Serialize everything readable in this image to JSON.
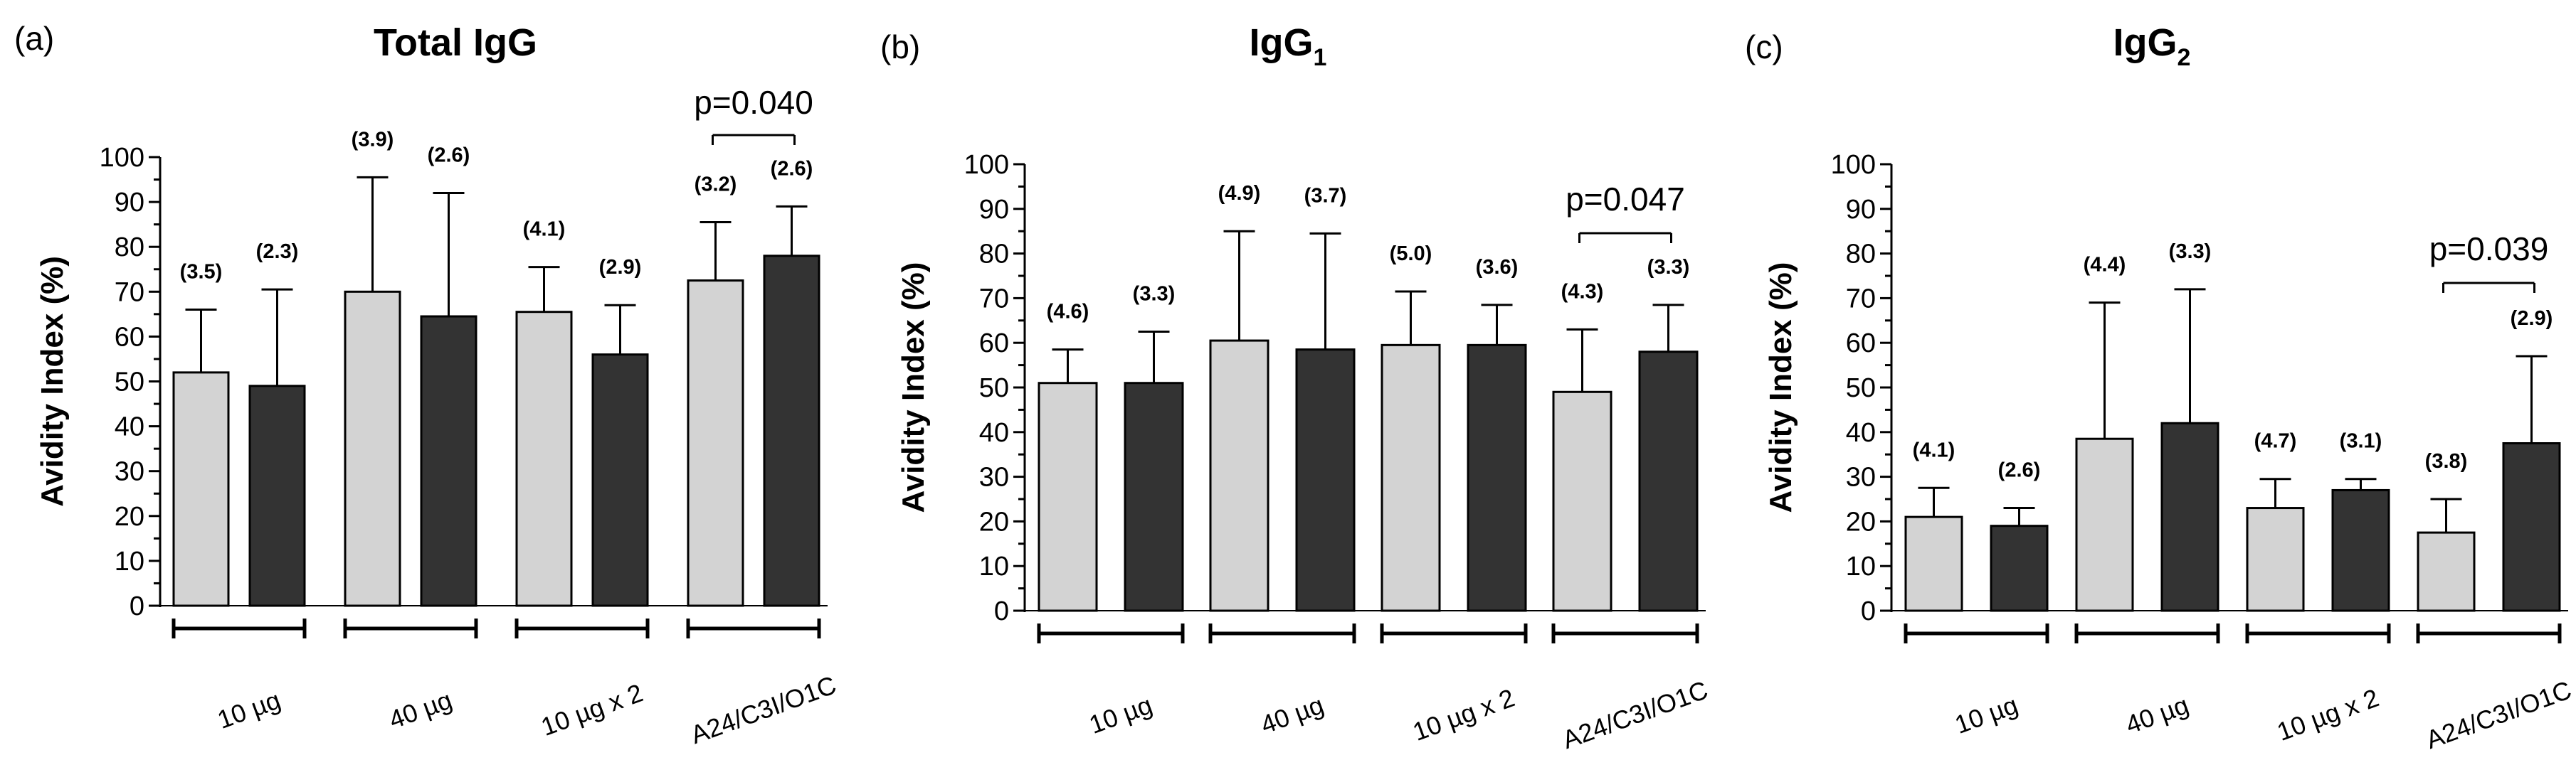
{
  "chart_data": [
    {
      "type": "bar",
      "panel_label": "(a)",
      "title": "Total IgG",
      "title_subscript": "",
      "ylabel": "Avidity Index (%)",
      "ylim": [
        0,
        100
      ],
      "yticks": [
        "0",
        "10",
        "20",
        "30",
        "40",
        "50",
        "60",
        "70",
        "80",
        "90",
        "100"
      ],
      "categories": [
        "10 µg",
        "40 µg",
        "10 µg x 2",
        "A24/C3I/O1C"
      ],
      "series": [
        {
          "color": "#d3d3d3",
          "values": [
            52,
            70,
            65.5,
            72.5
          ],
          "errors": [
            14,
            25.5,
            10,
            13
          ],
          "labels": [
            "(3.5)",
            "(3.9)",
            "(4.1)",
            "(3.2)"
          ]
        },
        {
          "color": "#333333",
          "values": [
            49,
            64.5,
            56,
            78
          ],
          "errors": [
            21.5,
            27.5,
            11,
            11
          ],
          "labels": [
            "(2.3)",
            "(2.6)",
            "(2.9)",
            "(2.6)"
          ]
        }
      ],
      "annotation": {
        "text": "p=0.040",
        "group": 3
      }
    },
    {
      "type": "bar",
      "panel_label": "(b)",
      "title": "IgG",
      "title_subscript": "1",
      "ylabel": "Avidity Index (%)",
      "ylim": [
        0,
        100
      ],
      "yticks": [
        "0",
        "10",
        "20",
        "30",
        "40",
        "50",
        "60",
        "70",
        "80",
        "90",
        "100"
      ],
      "categories": [
        "10 µg",
        "40 µg",
        "10 µg x 2",
        "A24/C3I/O1C"
      ],
      "series": [
        {
          "color": "#d3d3d3",
          "values": [
            51,
            60.5,
            59.5,
            49
          ],
          "errors": [
            7.5,
            24.5,
            12,
            14
          ],
          "labels": [
            "(4.6)",
            "(4.9)",
            "(5.0)",
            "(4.3)"
          ]
        },
        {
          "color": "#333333",
          "values": [
            51,
            58.5,
            59.5,
            58
          ],
          "errors": [
            11.5,
            26,
            9,
            10.5
          ],
          "labels": [
            "(3.3)",
            "(3.7)",
            "(3.6)",
            "(3.3)"
          ]
        }
      ],
      "annotation": {
        "text": "p=0.047",
        "group": 3
      }
    },
    {
      "type": "bar",
      "panel_label": "(c)",
      "title": "IgG",
      "title_subscript": "2",
      "ylabel": "Avidity Index (%)",
      "ylim": [
        0,
        100
      ],
      "yticks": [
        "0",
        "10",
        "20",
        "30",
        "40",
        "50",
        "60",
        "70",
        "80",
        "90",
        "100"
      ],
      "categories": [
        "10 µg",
        "40 µg",
        "10 µg x 2",
        "A24/C3I/O1C"
      ],
      "series": [
        {
          "color": "#d3d3d3",
          "values": [
            21,
            38.5,
            23,
            17.5
          ],
          "errors": [
            6.5,
            30.5,
            6.5,
            7.5
          ],
          "labels": [
            "(4.1)",
            "(4.4)",
            "(4.7)",
            "(3.8)"
          ]
        },
        {
          "color": "#333333",
          "values": [
            19,
            42,
            27,
            37.5
          ],
          "errors": [
            4,
            30,
            2.5,
            19.5
          ],
          "labels": [
            "(2.6)",
            "(3.3)",
            "(3.1)",
            "(2.9)"
          ]
        }
      ],
      "annotation": {
        "text": "p=0.039",
        "group": 3
      }
    }
  ]
}
